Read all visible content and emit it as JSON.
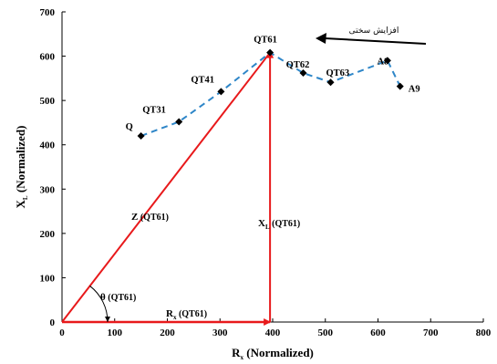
{
  "chart_data": {
    "type": "scatter",
    "xlabel": "R",
    "xlabel_sub": "x",
    "xlabel_rest": " (Normalized)",
    "ylabel": "X",
    "ylabel_sub": "L",
    "ylabel_rest": " (Normalized)",
    "xlim": [
      0,
      800
    ],
    "ylim": [
      0,
      700
    ],
    "xticks": [
      "0",
      "100",
      "200",
      "300",
      "400",
      "500",
      "600",
      "700",
      "800"
    ],
    "yticks": [
      "0",
      "100",
      "200",
      "300",
      "400",
      "500",
      "600",
      "700"
    ],
    "grid": false,
    "series": [
      {
        "points": [
          {
            "label": "Q",
            "x": 150,
            "y": 420
          },
          {
            "label": "QT31",
            "x": 222,
            "y": 452
          },
          {
            "label": "QT41",
            "x": 302,
            "y": 520
          },
          {
            "label": "QT61",
            "x": 395,
            "y": 608
          },
          {
            "label": "QT62",
            "x": 458,
            "y": 562
          },
          {
            "label": "QT63",
            "x": 510,
            "y": 541
          },
          {
            "label": "A8",
            "x": 618,
            "y": 590
          },
          {
            "label": "A9",
            "x": 642,
            "y": 532
          }
        ]
      }
    ],
    "annotations": {
      "z": {
        "main": "Z",
        "rest": " (QT61)"
      },
      "xl": {
        "main": "X",
        "sub": "L",
        "rest": " (QT61)"
      },
      "rx": {
        "main": "R",
        "sub": "x",
        "rest": " (QT61)"
      },
      "theta": {
        "main": "θ",
        "rest": " (QT61)"
      },
      "arrow_text": "افزایش سختی"
    },
    "triangle": {
      "x": 395,
      "y": 608
    },
    "colors": {
      "triangle": "#e8191b",
      "series": "#2e86c8",
      "marker": "#000000"
    }
  }
}
